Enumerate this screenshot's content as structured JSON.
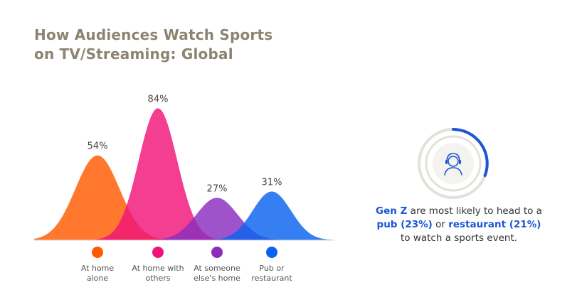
{
  "title_line1": "How Audiences Watch Sports",
  "title_line2": "on TV/Streaming: Global",
  "chart_data": {
    "type": "area",
    "categories": [
      "At home alone",
      "At home with others",
      "At someone else's home",
      "Pub or restaurant"
    ],
    "category_label_lines": [
      [
        "At home",
        "alone"
      ],
      [
        "At home with",
        "others"
      ],
      [
        "At someone",
        "else's home"
      ],
      [
        "Pub or",
        "restaurant"
      ]
    ],
    "values": [
      54,
      84,
      27,
      31
    ],
    "value_labels": [
      "54%",
      "84%",
      "27%",
      "31%"
    ],
    "colors": [
      "#ff5a00",
      "#f0147a",
      "#8a2dbf",
      "#0a63f0"
    ],
    "ylim": [
      0,
      100
    ],
    "legend_placement": "bottom",
    "grid": false
  },
  "insight": {
    "subject": "Gen Z",
    "text1": " are most likely to head to a",
    "place1": "pub (23%)",
    "text2": " or ",
    "place2": "restaurant (21%)",
    "text3": "to watch a sports event."
  },
  "icons": {
    "avatar": "person-headset-icon",
    "ring": "progress-ring-icon"
  }
}
